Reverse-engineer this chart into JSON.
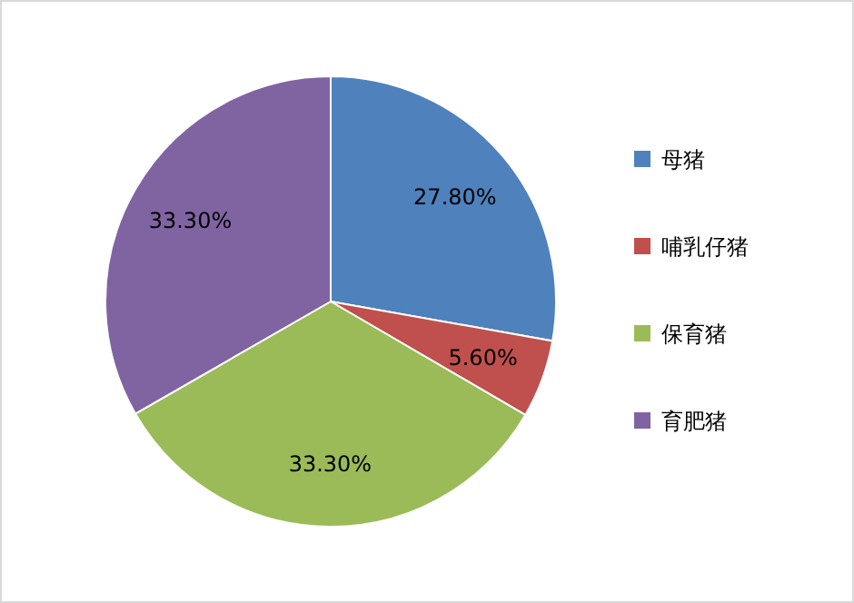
{
  "chart_data": {
    "type": "pie",
    "categories": [
      "母猪",
      "哺乳仔猪",
      "保育猪",
      "育肥猪"
    ],
    "values": [
      27.8,
      5.6,
      33.3,
      33.3
    ],
    "colors": [
      "#4f81bd",
      "#c0504d",
      "#9bbb59",
      "#8064a2"
    ],
    "value_labels": [
      "27.80%",
      "5.60%",
      "33.30%",
      "33.30%"
    ],
    "legend": "right"
  }
}
